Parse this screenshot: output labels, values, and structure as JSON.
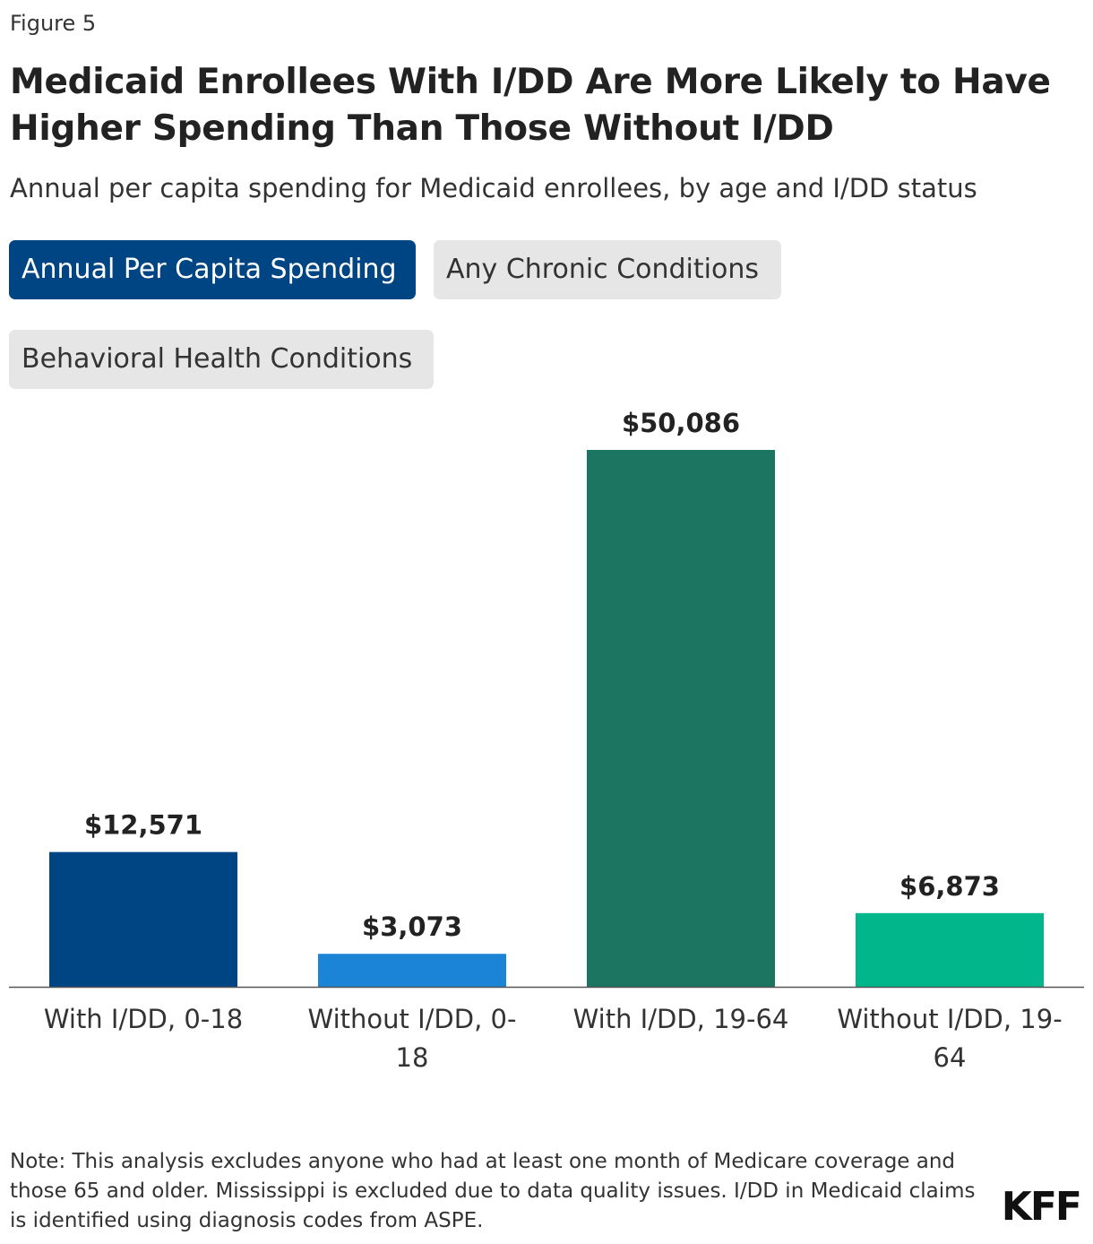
{
  "figure_label": "Figure 5",
  "title": "Medicaid Enrollees With I/DD Are More Likely to Have Higher Spending Than Those Without I/DD",
  "subtitle": "Annual per capita spending for Medicaid enrollees, by age and I/DD status",
  "tabs": [
    {
      "label": "Annual Per Capita Spending",
      "active": true
    },
    {
      "label": "Any Chronic Conditions",
      "active": false
    },
    {
      "label": "Behavioral Health Conditions",
      "active": false
    }
  ],
  "chart_data": {
    "type": "bar",
    "title": "",
    "xlabel": "",
    "ylabel": "",
    "categories": [
      [
        "With I/DD, 0-18"
      ],
      [
        "Without I/DD, 0-",
        "18"
      ],
      [
        "With I/DD, 19-64"
      ],
      [
        "Without I/DD, 19-",
        "64"
      ]
    ],
    "values": [
      12571,
      3073,
      50086,
      6873
    ],
    "value_labels": [
      "$12,571",
      "$3,073",
      "$50,086",
      "$6,873"
    ],
    "colors": [
      "#004583",
      "#1b84d6",
      "#1c7561",
      "#00b68a"
    ],
    "ylim": [
      0,
      50086
    ],
    "grid": false,
    "legend": "none"
  },
  "note": "Note: This analysis excludes anyone who had at least one month of Medicare coverage and those 65 and older. Mississippi is excluded due to data quality issues. I/DD in Medicaid claims is identified using diagnosis codes from ASPE.",
  "logo": "KFF"
}
